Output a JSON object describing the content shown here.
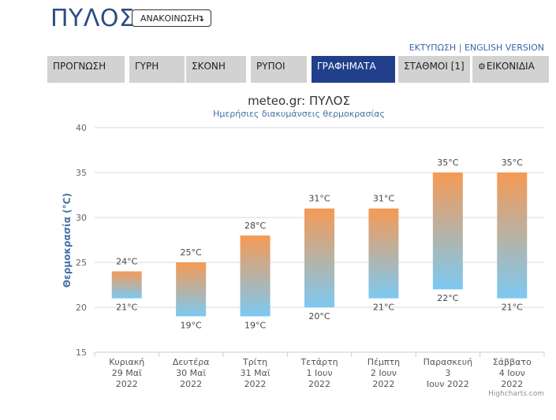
{
  "header": {
    "city": "ΠΥΛΟΣ",
    "announce_label": "ΑΝΑΚΟΙΝΩΣΗ",
    "announce_icon": "arrow-down-icon",
    "print_link": "ΕΚΤΥΠΩΣΗ",
    "link_separator": "|",
    "english_link": "ENGLISH VERSION"
  },
  "tabs": [
    {
      "label": "ΠΡΟΓΝΩΣΗ",
      "active": false
    },
    {
      "label": "ΓΥΡΗ",
      "active": false
    },
    {
      "label": "ΣΚΟΝΗ",
      "active": false
    },
    {
      "label": "ΡΥΠΟΙ",
      "active": false
    },
    {
      "label": "ΓΡΑΦΗΜΑΤΑ",
      "active": true
    },
    {
      "label": "ΣΤΑΘΜΟΙ [1]",
      "active": false
    },
    {
      "label": "ΕΙΚΟΝΙΔΙΑ",
      "active": false,
      "icon": "gear-icon"
    }
  ],
  "colors": {
    "active_tab": "#213f8b",
    "inactive_tab": "#d2d2d2",
    "bar_top": "#f59a55",
    "bar_bottom": "#7cc9f2",
    "axis_title": "#4572a7"
  },
  "chart_data": {
    "type": "columnrange",
    "title": "meteo.gr: ΠΥΛΟΣ",
    "subtitle": "Ημερήσιες διακυμάνσεις θερμοκρασίας",
    "ylabel": "Θερμοκρασία (°C)",
    "ylim": [
      15,
      40
    ],
    "yticks": [
      15,
      20,
      25,
      30,
      35,
      40
    ],
    "grid": true,
    "credits": "Highcharts.com",
    "categories": [
      [
        "Κυριακή",
        "29 Μαϊ",
        "2022"
      ],
      [
        "Δευτέρα",
        "30 Μαϊ",
        "2022"
      ],
      [
        "Τρίτη",
        "31 Μαϊ",
        "2022"
      ],
      [
        "Τετάρτη",
        "1 Ιουν",
        "2022"
      ],
      [
        "Πέμπτη",
        "2 Ιουν",
        "2022"
      ],
      [
        "Παρασκευή",
        "3",
        "Ιουν 2022"
      ],
      [
        "Σάββατο",
        "4 Ιουν",
        "2022"
      ]
    ],
    "low": [
      21,
      19,
      19,
      20,
      21,
      22,
      21
    ],
    "high": [
      24,
      25,
      28,
      31,
      31,
      35,
      35
    ],
    "low_labels": [
      "21°C",
      "19°C",
      "19°C",
      "20°C",
      "21°C",
      "22°C",
      "21°C"
    ],
    "high_labels": [
      "24°C",
      "25°C",
      "28°C",
      "31°C",
      "31°C",
      "35°C",
      "35°C"
    ]
  }
}
